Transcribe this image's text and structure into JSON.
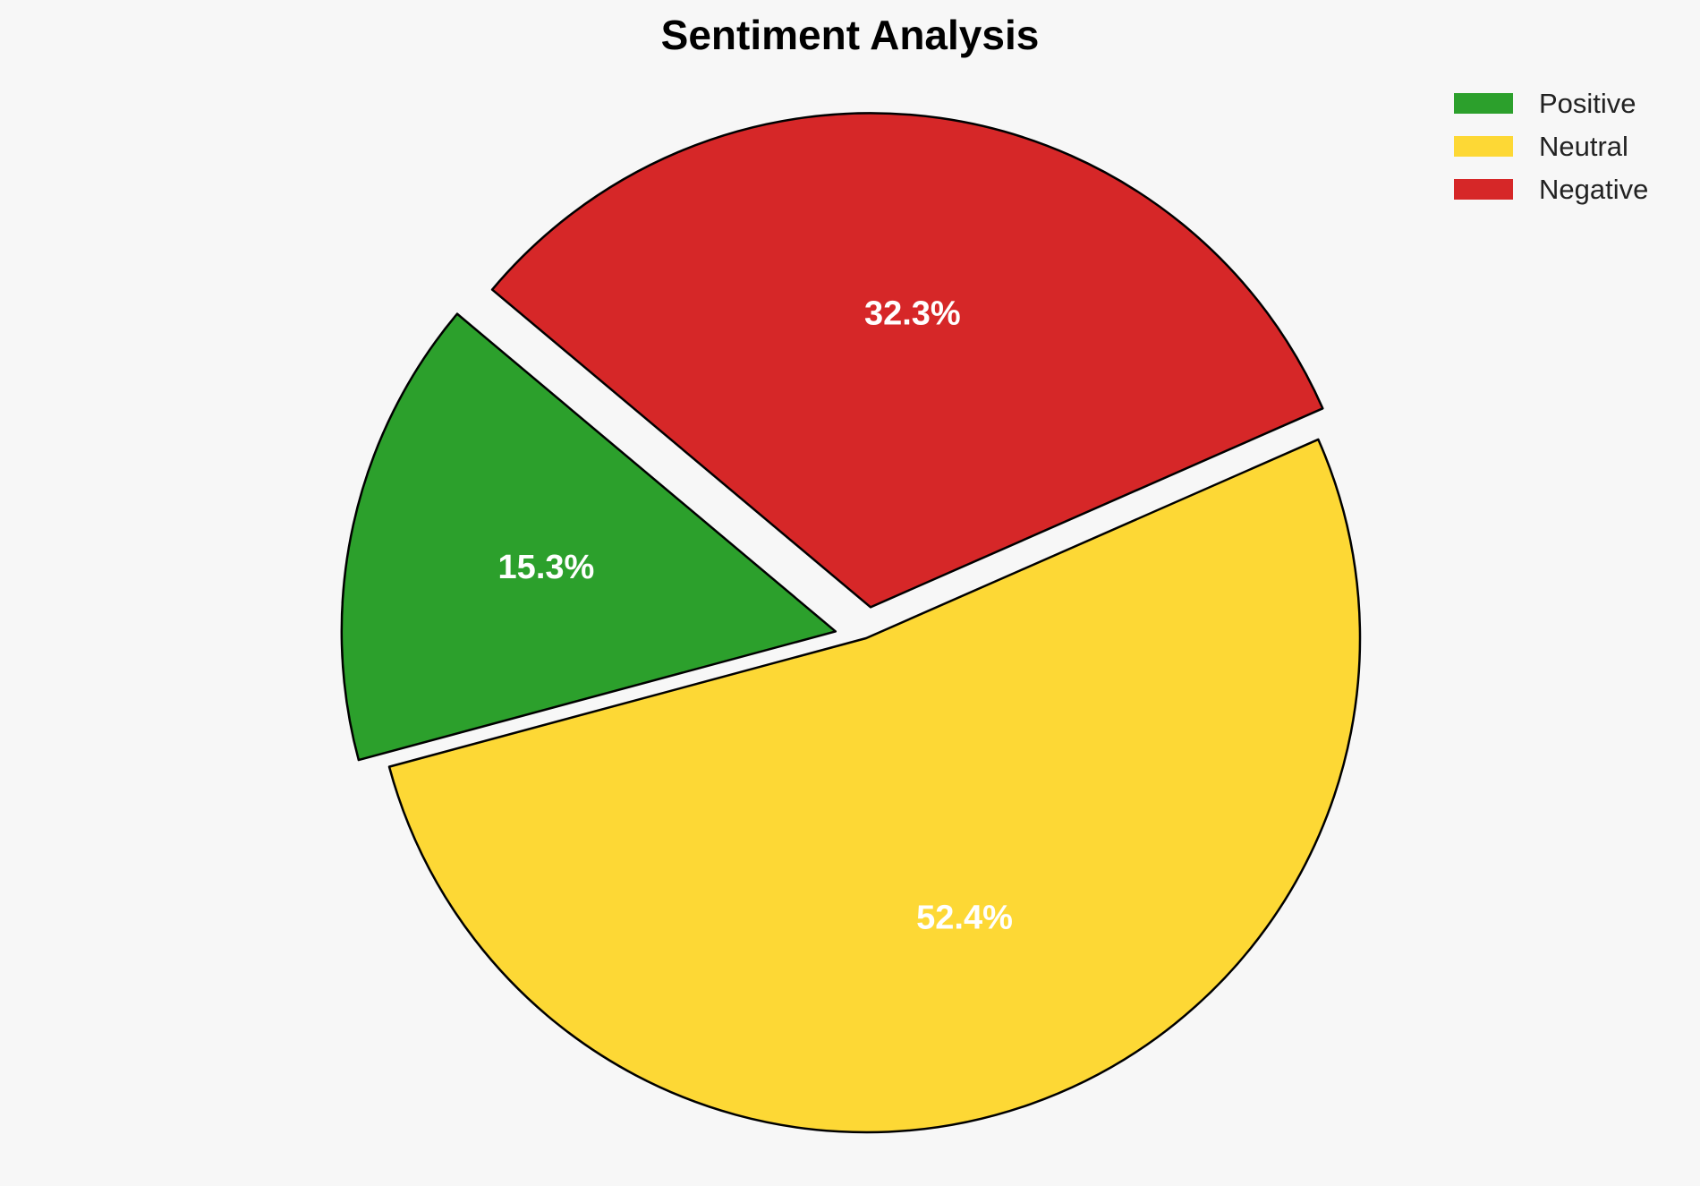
{
  "chart_data": {
    "type": "pie",
    "title": "Sentiment Analysis",
    "categories": [
      "Positive",
      "Neutral",
      "Negative"
    ],
    "values": [
      15.3,
      52.4,
      32.3
    ],
    "value_labels": [
      "15.3%",
      "52.4%",
      "32.3%"
    ],
    "colors": [
      "#2ca02c",
      "#fdd835",
      "#d62728"
    ],
    "exploded": [
      true,
      false,
      true
    ],
    "legend": {
      "placement": "top-right",
      "entries": [
        "Positive",
        "Neutral",
        "Negative"
      ]
    }
  }
}
